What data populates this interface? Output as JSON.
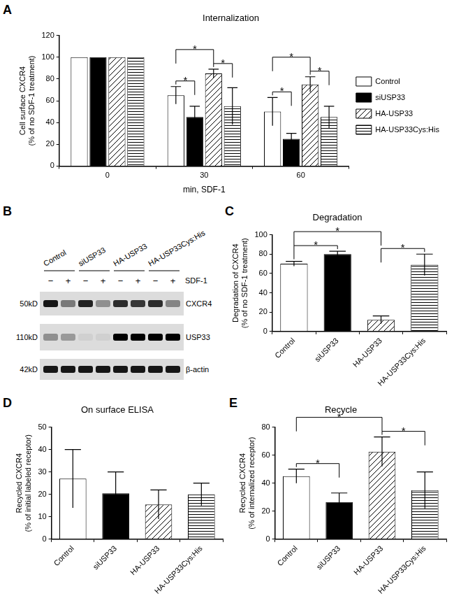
{
  "chart_data": [
    {
      "type": "bar",
      "panel": "A",
      "title": "Internalization",
      "x_label": "min, SDF-1",
      "y_label": [
        "Cell surface CXCR4",
        "(% of no SDF-1 treatment)"
      ],
      "categories": [
        "0",
        "30",
        "60"
      ],
      "series": [
        {
          "name": "Control",
          "color": "#ffffff",
          "values": [
            100,
            65,
            50
          ],
          "errors": [
            0,
            8,
            13
          ]
        },
        {
          "name": "siUSP33",
          "color": "#000000",
          "values": [
            100,
            45,
            25
          ],
          "errors": [
            0,
            10,
            5
          ]
        },
        {
          "name": "HA-USP33",
          "color": "#ffffff",
          "values": [
            100,
            85,
            75
          ],
          "errors": [
            0,
            4,
            7
          ]
        },
        {
          "name": "HA-USP33Cys:His",
          "color": "#ffffff",
          "values": [
            100,
            55,
            45
          ],
          "errors": [
            0,
            17,
            10
          ]
        }
      ],
      "ylim": [
        0,
        120
      ],
      "yticks": [
        0,
        20,
        40,
        60,
        80,
        100,
        120
      ],
      "grid": false,
      "legend": "right",
      "annotations": [
        {
          "category": "30",
          "between": [
            "Control",
            "siUSP33"
          ],
          "text": "*"
        },
        {
          "category": "30",
          "between": [
            "HA-USP33",
            "HA-USP33Cys:His"
          ],
          "text": "*"
        },
        {
          "category": "30",
          "between": [
            "Control",
            "HA-USP33"
          ],
          "text": "*"
        },
        {
          "category": "60",
          "between": [
            "Control",
            "siUSP33"
          ],
          "text": "*"
        },
        {
          "category": "60",
          "between": [
            "HA-USP33",
            "HA-USP33Cys:His"
          ],
          "text": "*"
        },
        {
          "category": "60",
          "between": [
            "Control",
            "HA-USP33"
          ],
          "text": "*"
        }
      ]
    },
    {
      "type": "bar",
      "panel": "C",
      "title": "Degradation",
      "y_label": [
        "Degradation of CXCR4",
        "(% of no SDF-1 treatment)"
      ],
      "categories": [
        "Control",
        "siUSP33",
        "HA-USP33",
        "HA-USP33Cys:His"
      ],
      "values": [
        70,
        80,
        12,
        69
      ],
      "errors": [
        2.5,
        3,
        4,
        11
      ],
      "colors": [
        "#ffffff",
        "#000000",
        "#ffffff",
        "#ffffff"
      ],
      "ylim": [
        0,
        100
      ],
      "yticks": [
        0,
        20,
        40,
        60,
        80,
        100
      ],
      "grid": false,
      "annotations": [
        {
          "between": [
            "Control",
            "siUSP33"
          ],
          "text": "*"
        },
        {
          "between": [
            "HA-USP33",
            "HA-USP33Cys:His"
          ],
          "text": "*"
        },
        {
          "between": [
            "Control",
            "HA-USP33"
          ],
          "text": "*"
        }
      ]
    },
    {
      "type": "bar",
      "panel": "D",
      "title": "On surface ELISA",
      "y_label": [
        "Recycled CXCR4",
        "(% of initial labeled receptor)"
      ],
      "categories": [
        "Control",
        "siUSP33",
        "HA-USP33",
        "HA-USP33Cys:His"
      ],
      "values": [
        27,
        20.5,
        15.5,
        20
      ],
      "errors": [
        13,
        9.5,
        6.5,
        5
      ],
      "colors": [
        "#ffffff",
        "#000000",
        "#ffffff",
        "#ffffff"
      ],
      "ylim": [
        0,
        50
      ],
      "yticks": [
        0,
        10,
        20,
        30,
        40,
        50
      ],
      "grid": false
    },
    {
      "type": "bar",
      "panel": "E",
      "title": "Recycle",
      "y_label": [
        "Recycled CXCR4",
        "(% of internalized receptor)"
      ],
      "categories": [
        "Control",
        "siUSP33",
        "HA-USP33",
        "HA-USP33Cys:His"
      ],
      "values": [
        45,
        26.5,
        62.5,
        35
      ],
      "errors": [
        5,
        6.5,
        10.5,
        13
      ],
      "colors": [
        "#ffffff",
        "#000000",
        "#ffffff",
        "#ffffff"
      ],
      "ylim": [
        0,
        80
      ],
      "yticks": [
        0,
        20,
        40,
        60,
        80
      ],
      "grid": false,
      "annotations": [
        {
          "between": [
            "Control",
            "siUSP33"
          ],
          "text": "*"
        },
        {
          "between": [
            "HA-USP33",
            "HA-USP33Cys:His"
          ],
          "text": "*"
        },
        {
          "between": [
            "Control",
            "HA-USP33"
          ],
          "text": "*"
        }
      ]
    }
  ],
  "blot": {
    "panel": "B",
    "groups": [
      "Control",
      "siUSP33",
      "HA-USP33",
      "HA-USP33Cys:His"
    ],
    "treatment_label": "SDF-1",
    "treatment": [
      "−",
      "+",
      "−",
      "+",
      "−",
      "+",
      "−",
      "+"
    ],
    "rows": [
      {
        "size": "50kD",
        "name": "CXCR4",
        "intensity": [
          0.9,
          0.45,
          0.85,
          0.35,
          0.8,
          0.75,
          0.8,
          0.4
        ]
      },
      {
        "size": "110kD",
        "name": "USP33",
        "intensity": [
          0.35,
          0.3,
          0.05,
          0.05,
          1,
          1,
          1,
          1
        ]
      },
      {
        "size": "42kD",
        "name": "β-actin",
        "intensity": [
          0.9,
          0.9,
          0.9,
          0.9,
          0.9,
          0.9,
          0.9,
          0.9
        ]
      }
    ]
  }
}
